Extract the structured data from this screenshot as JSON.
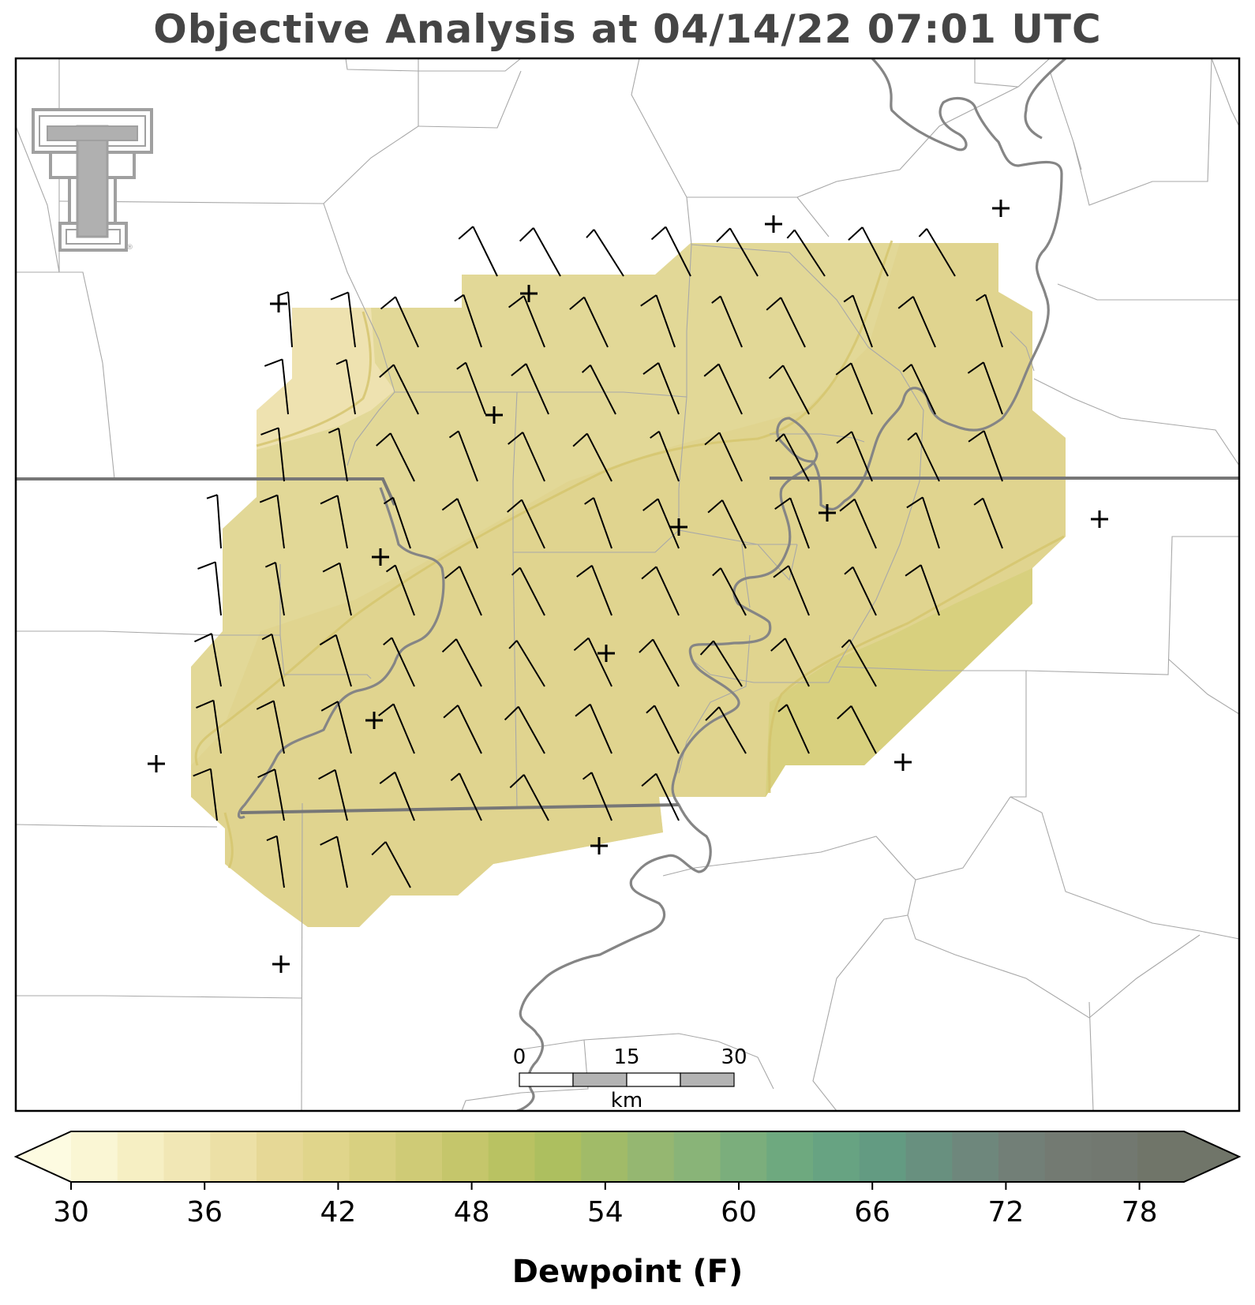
{
  "title": "Objective Analysis at 04/14/22 07:01 UTC",
  "logo": {
    "name": "double-t-logo",
    "color": "#a0a0a0"
  },
  "colorbar": {
    "label": "Dewpoint (F)",
    "ticks": [
      "30",
      "36",
      "42",
      "48",
      "54",
      "60",
      "66",
      "72",
      "78"
    ],
    "min": 30,
    "max": 80,
    "step": 2,
    "colors": [
      "#fdfbe1",
      "#faf6d4",
      "#f6efc3",
      "#f1e7b5",
      "#ece0a6",
      "#e6d896",
      "#e0d58b",
      "#d8d080",
      "#cfcb76",
      "#c5c66b",
      "#b9c262",
      "#adbf5f",
      "#a1bb68",
      "#95b771",
      "#89b478",
      "#7bae7c",
      "#6ea97f",
      "#67a382",
      "#639b82",
      "#68907f",
      "#6e877c",
      "#727f77",
      "#737a72",
      "#727870",
      "#707569"
    ]
  },
  "scalebar": {
    "labels": [
      "0",
      "15",
      "30"
    ],
    "unit": "km"
  },
  "colors": {
    "state_border": "#777777",
    "county": "#9a9a9a",
    "river": "#808080",
    "contour": "#d8c970"
  }
}
